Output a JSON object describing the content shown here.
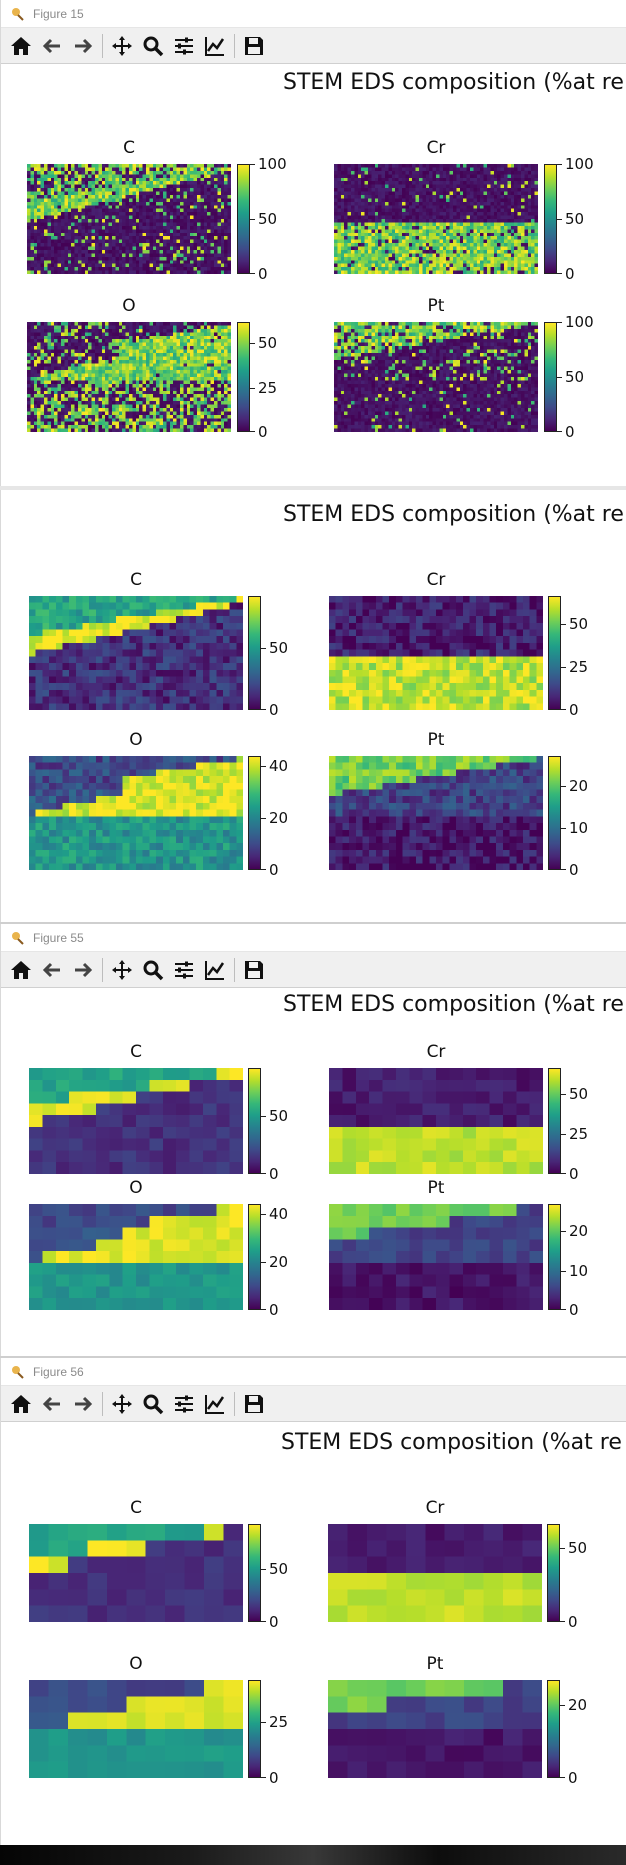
{
  "colors": {
    "viridis": [
      "#440154",
      "#482777",
      "#3e4a89",
      "#31688e",
      "#26828e",
      "#1f9e89",
      "#35b779",
      "#6ece58",
      "#b5de2b",
      "#fde725"
    ]
  },
  "toolbar_icons": [
    "home-icon",
    "back-arrow-icon",
    "forward-arrow-icon",
    "pan-icon",
    "zoom-icon",
    "configure-subplots-icon",
    "edit-axis-icon",
    "save-icon"
  ],
  "figures": [
    {
      "window_title": "Figure 15",
      "suptitle": "STEM EDS composition (%at re",
      "panels": [
        {
          "title": "C",
          "pattern": "c",
          "noise": 0.9,
          "cols": 60,
          "rows": 32,
          "ticks": [
            "100",
            "50",
            "0"
          ],
          "tick_values": [
            100,
            50,
            0
          ],
          "vmax": 100
        },
        {
          "title": "Cr",
          "pattern": "cr",
          "noise": 0.9,
          "cols": 60,
          "rows": 32,
          "ticks": [
            "100",
            "50",
            "0"
          ],
          "tick_values": [
            100,
            50,
            0
          ],
          "vmax": 100
        },
        {
          "title": "O",
          "pattern": "o",
          "noise": 0.9,
          "cols": 60,
          "rows": 32,
          "ticks": [
            "50",
            "25",
            "0"
          ],
          "tick_values": [
            50,
            25,
            0
          ],
          "vmax": 62
        },
        {
          "title": "Pt",
          "pattern": "pt",
          "noise": 0.9,
          "cols": 60,
          "rows": 32,
          "ticks": [
            "100",
            "50",
            "0"
          ],
          "tick_values": [
            100,
            50,
            0
          ],
          "vmax": 100
        }
      ]
    },
    {
      "window_title": "",
      "suptitle": "STEM EDS composition (%at re",
      "panels": [
        {
          "title": "C",
          "pattern": "c",
          "noise": 0.12,
          "cols": 32,
          "rows": 17,
          "ticks": [
            "50",
            "0"
          ],
          "tick_values": [
            50,
            0
          ],
          "vmax": 92
        },
        {
          "title": "Cr",
          "pattern": "cr",
          "noise": 0.12,
          "cols": 32,
          "rows": 17,
          "ticks": [
            "50",
            "25",
            "0"
          ],
          "tick_values": [
            50,
            25,
            0
          ],
          "vmax": 66
        },
        {
          "title": "O",
          "pattern": "o",
          "noise": 0.12,
          "cols": 32,
          "rows": 17,
          "ticks": [
            "40",
            "20",
            "0"
          ],
          "tick_values": [
            40,
            20,
            0
          ],
          "vmax": 44
        },
        {
          "title": "Pt",
          "pattern": "pt",
          "noise": 0.12,
          "cols": 32,
          "rows": 17,
          "ticks": [
            "20",
            "10",
            "0"
          ],
          "tick_values": [
            20,
            10,
            0
          ],
          "vmax": 27
        }
      ]
    },
    {
      "window_title": "Figure 55",
      "suptitle": "STEM EDS composition (%at re",
      "panels": [
        {
          "title": "C",
          "pattern": "c",
          "noise": 0.06,
          "cols": 16,
          "rows": 9,
          "ticks": [
            "50",
            "0"
          ],
          "tick_values": [
            50,
            0
          ],
          "vmax": 92
        },
        {
          "title": "Cr",
          "pattern": "cr",
          "noise": 0.06,
          "cols": 16,
          "rows": 9,
          "ticks": [
            "50",
            "25",
            "0"
          ],
          "tick_values": [
            50,
            25,
            0
          ],
          "vmax": 66
        },
        {
          "title": "O",
          "pattern": "o",
          "noise": 0.06,
          "cols": 16,
          "rows": 9,
          "ticks": [
            "40",
            "20",
            "0"
          ],
          "tick_values": [
            40,
            20,
            0
          ],
          "vmax": 44
        },
        {
          "title": "Pt",
          "pattern": "pt",
          "noise": 0.06,
          "cols": 16,
          "rows": 9,
          "ticks": [
            "20",
            "10",
            "0"
          ],
          "tick_values": [
            20,
            10,
            0
          ],
          "vmax": 27
        }
      ]
    },
    {
      "window_title": "Figure 56",
      "suptitle": "STEM EDS composition (%at re",
      "panels": [
        {
          "title": "C",
          "pattern": "c",
          "noise": 0.05,
          "cols": 11,
          "rows": 6,
          "ticks": [
            "50",
            "0"
          ],
          "tick_values": [
            50,
            0
          ],
          "vmax": 92
        },
        {
          "title": "Cr",
          "pattern": "cr",
          "noise": 0.05,
          "cols": 11,
          "rows": 6,
          "ticks": [
            "50",
            "0"
          ],
          "tick_values": [
            50,
            0
          ],
          "vmax": 66
        },
        {
          "title": "O",
          "pattern": "o",
          "noise": 0.05,
          "cols": 11,
          "rows": 6,
          "ticks": [
            "25",
            "0"
          ],
          "tick_values": [
            25,
            0
          ],
          "vmax": 44
        },
        {
          "title": "Pt",
          "pattern": "pt",
          "noise": 0.05,
          "cols": 11,
          "rows": 6,
          "ticks": [
            "20",
            "0"
          ],
          "tick_values": [
            20,
            0
          ],
          "vmax": 27
        }
      ]
    }
  ]
}
